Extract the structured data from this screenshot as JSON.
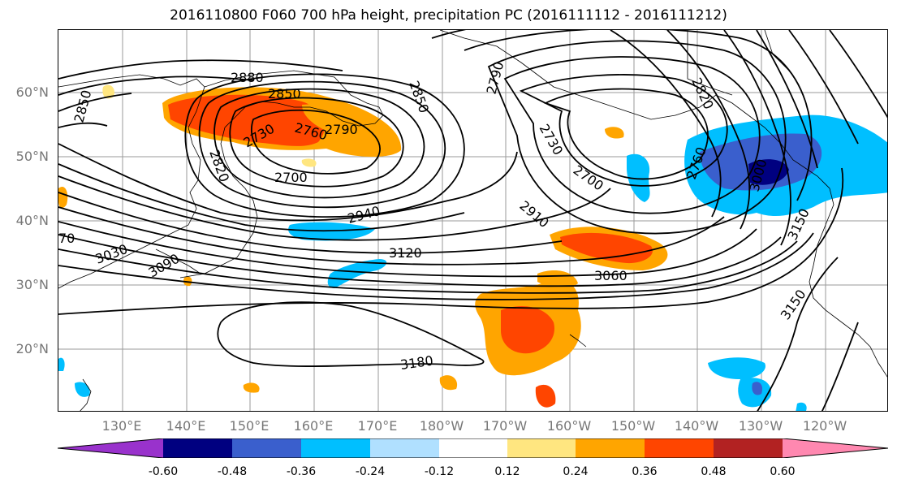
{
  "title": "2016110800 F060 700 hPa height, precipitation PC (2016111112 - 2016111212)",
  "latitude_labels": [
    "60°N",
    "50°N",
    "40°N",
    "30°N",
    "20°N"
  ],
  "longitude_labels": [
    "130°E",
    "140°E",
    "150°E",
    "160°E",
    "170°E",
    "180°W",
    "170°W",
    "160°W",
    "150°W",
    "140°W",
    "130°W",
    "120°W"
  ],
  "contour_labels": [
    "2880",
    "2850",
    "2850",
    "2850",
    "2790",
    "2760",
    "2730",
    "2820",
    "2700",
    "2790",
    "2730",
    "2700",
    "2820",
    "2760",
    "3000",
    "3150",
    "2910",
    "2940",
    "3120",
    "3030",
    "3090",
    "3060",
    "3180",
    "3150",
    "70"
  ],
  "colorbar": {
    "ticks": [
      "-0.60",
      "-0.48",
      "-0.36",
      "-0.24",
      "-0.12",
      "0.12",
      "0.24",
      "0.36",
      "0.48",
      "0.60"
    ],
    "colors": [
      "#9932cc",
      "#000080",
      "#3a5fcd",
      "#00bfff",
      "#b0e0ff",
      "#ffffff",
      "#ffe680",
      "#ffa500",
      "#ff4500",
      "#b22222",
      "#ff88b0"
    ]
  }
}
